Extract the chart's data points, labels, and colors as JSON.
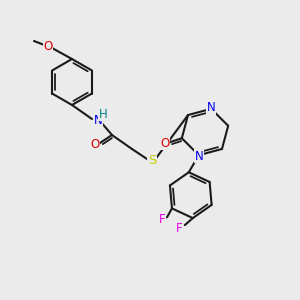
{
  "background_color": "#ebebeb",
  "bond_color": "#1a1a1a",
  "bond_lw": 1.5,
  "atom_colors": {
    "N": "#0000ee",
    "O": "#dd0000",
    "S": "#cccc00",
    "F": "#ee00ee",
    "H": "#008080"
  },
  "font_size": 8.5,
  "font_size_small": 7.5
}
